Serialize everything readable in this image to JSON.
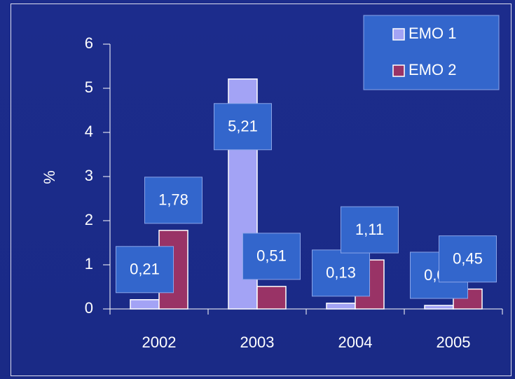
{
  "chart_data": {
    "type": "bar",
    "categories": [
      "2002",
      "2003",
      "2004",
      "2005"
    ],
    "y_label": "%",
    "series": [
      {
        "name": "EMO 1",
        "color": "#a3a3f5",
        "values": [
          0.21,
          5.21,
          0.13,
          0.08
        ],
        "value_labels": [
          "0,21",
          "5,21",
          "0,13",
          "0,08"
        ]
      },
      {
        "name": "EMO 2",
        "color": "#993366",
        "values": [
          1.78,
          0.51,
          1.11,
          0.45
        ],
        "value_labels": [
          "1,78",
          "0,51",
          "1,11",
          "0,45"
        ]
      }
    ],
    "ylim": [
      0,
      6
    ],
    "yticks": [
      0,
      1,
      2,
      3,
      4,
      5,
      6
    ],
    "legend": "upper right"
  }
}
